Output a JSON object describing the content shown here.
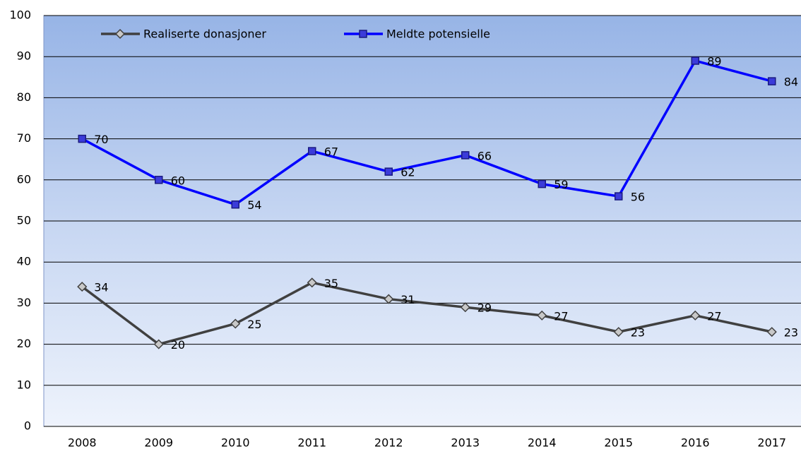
{
  "chart_data": {
    "type": "line",
    "categories": [
      "2008",
      "2009",
      "2010",
      "2011",
      "2012",
      "2013",
      "2014",
      "2015",
      "2016",
      "2017"
    ],
    "series": [
      {
        "name": "Realiserte donasjoner",
        "color": "#404040",
        "marker": "diamond",
        "values": [
          34,
          20,
          25,
          35,
          31,
          29,
          27,
          23,
          27,
          23
        ]
      },
      {
        "name": "Meldte potensielle",
        "color": "#0000ff",
        "marker": "square",
        "values": [
          70,
          60,
          54,
          67,
          62,
          66,
          59,
          56,
          89,
          84
        ]
      }
    ],
    "ylim": [
      0,
      100
    ],
    "yticks": [
      0,
      10,
      20,
      30,
      40,
      50,
      60,
      70,
      80,
      90,
      100
    ],
    "grid": true,
    "legend": "top-left"
  }
}
